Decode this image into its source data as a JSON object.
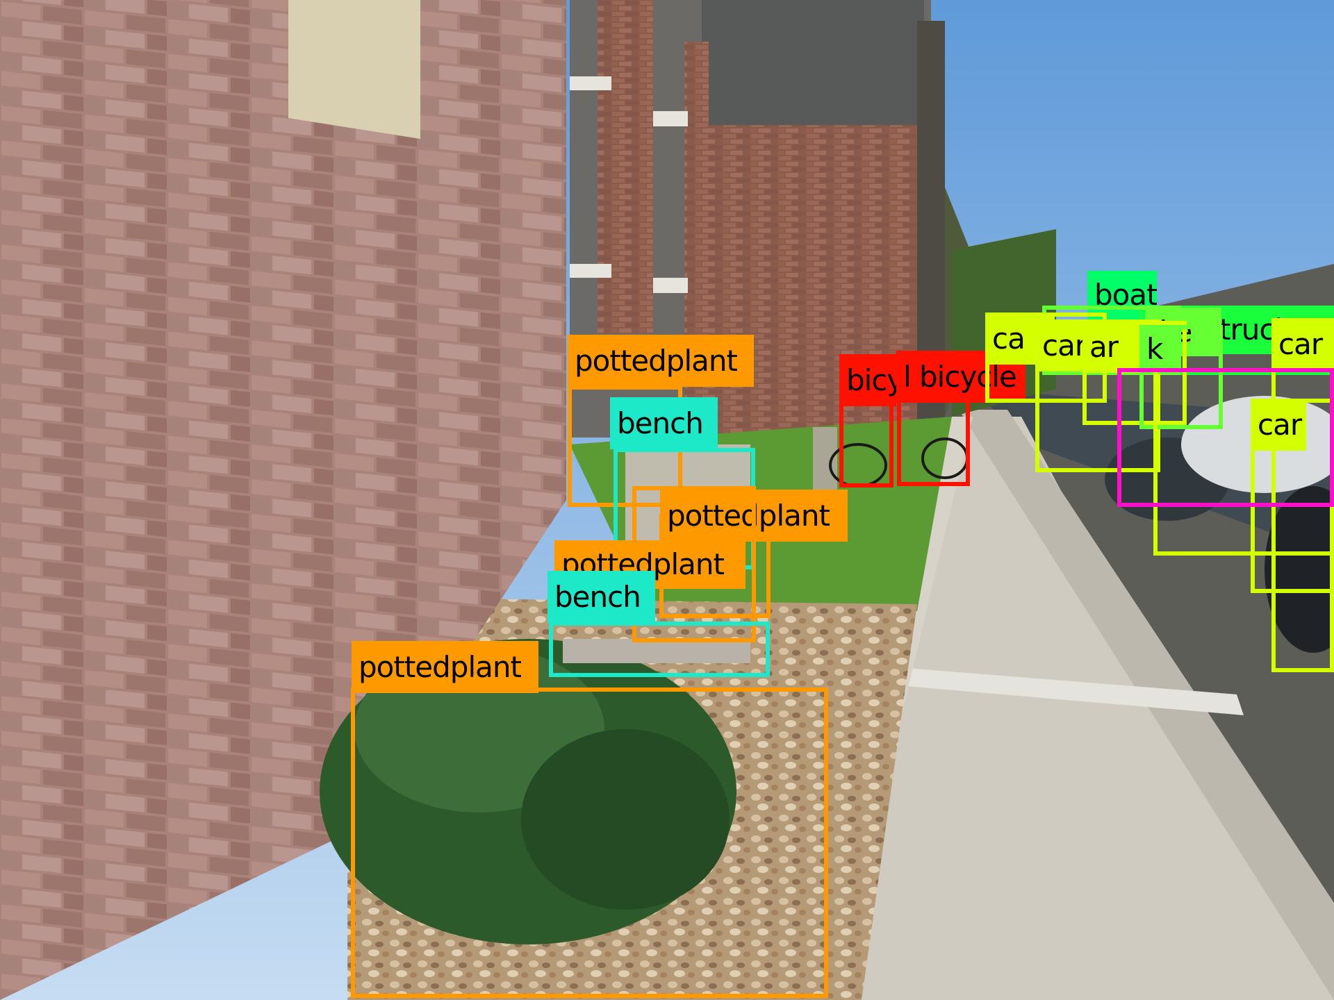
{
  "colors": {
    "pottedplant": "#ff9900",
    "bench": "#1de9c8",
    "bicycle": "#ff1100",
    "car": "#d4ff00",
    "truck": "#19ff3c",
    "boat": "#00ff66",
    "bike": "#66ff33",
    "pink": "#ff10c8"
  },
  "detections": [
    {
      "label": "pottedplant",
      "color_key": "pottedplant"
    },
    {
      "label": "bench",
      "color_key": "bench"
    },
    {
      "label": "pottedplant",
      "color_key": "pottedplant"
    },
    {
      "label": "pottedplant",
      "color_key": "pottedplant"
    },
    {
      "label": "bench",
      "color_key": "bench"
    },
    {
      "label": "pottedplant",
      "color_key": "pottedplant"
    },
    {
      "label": "bicy",
      "color_key": "bicycle"
    },
    {
      "label": "l bicycle",
      "color_key": "bicycle"
    },
    {
      "label": "boat",
      "color_key": "boat"
    },
    {
      "label": "truck",
      "color_key": "truck"
    },
    {
      "label": "ike",
      "color_key": "bike"
    },
    {
      "label": "ca",
      "color_key": "car"
    },
    {
      "label": "car",
      "color_key": "car"
    },
    {
      "label": "ar",
      "color_key": "car"
    },
    {
      "label": "k",
      "color_key": "bike"
    },
    {
      "label": "car",
      "color_key": "car"
    },
    {
      "label": "car",
      "color_key": "car"
    },
    {
      "label": "car",
      "color_key": "car"
    },
    {
      "label": "",
      "color_key": "pink"
    }
  ]
}
